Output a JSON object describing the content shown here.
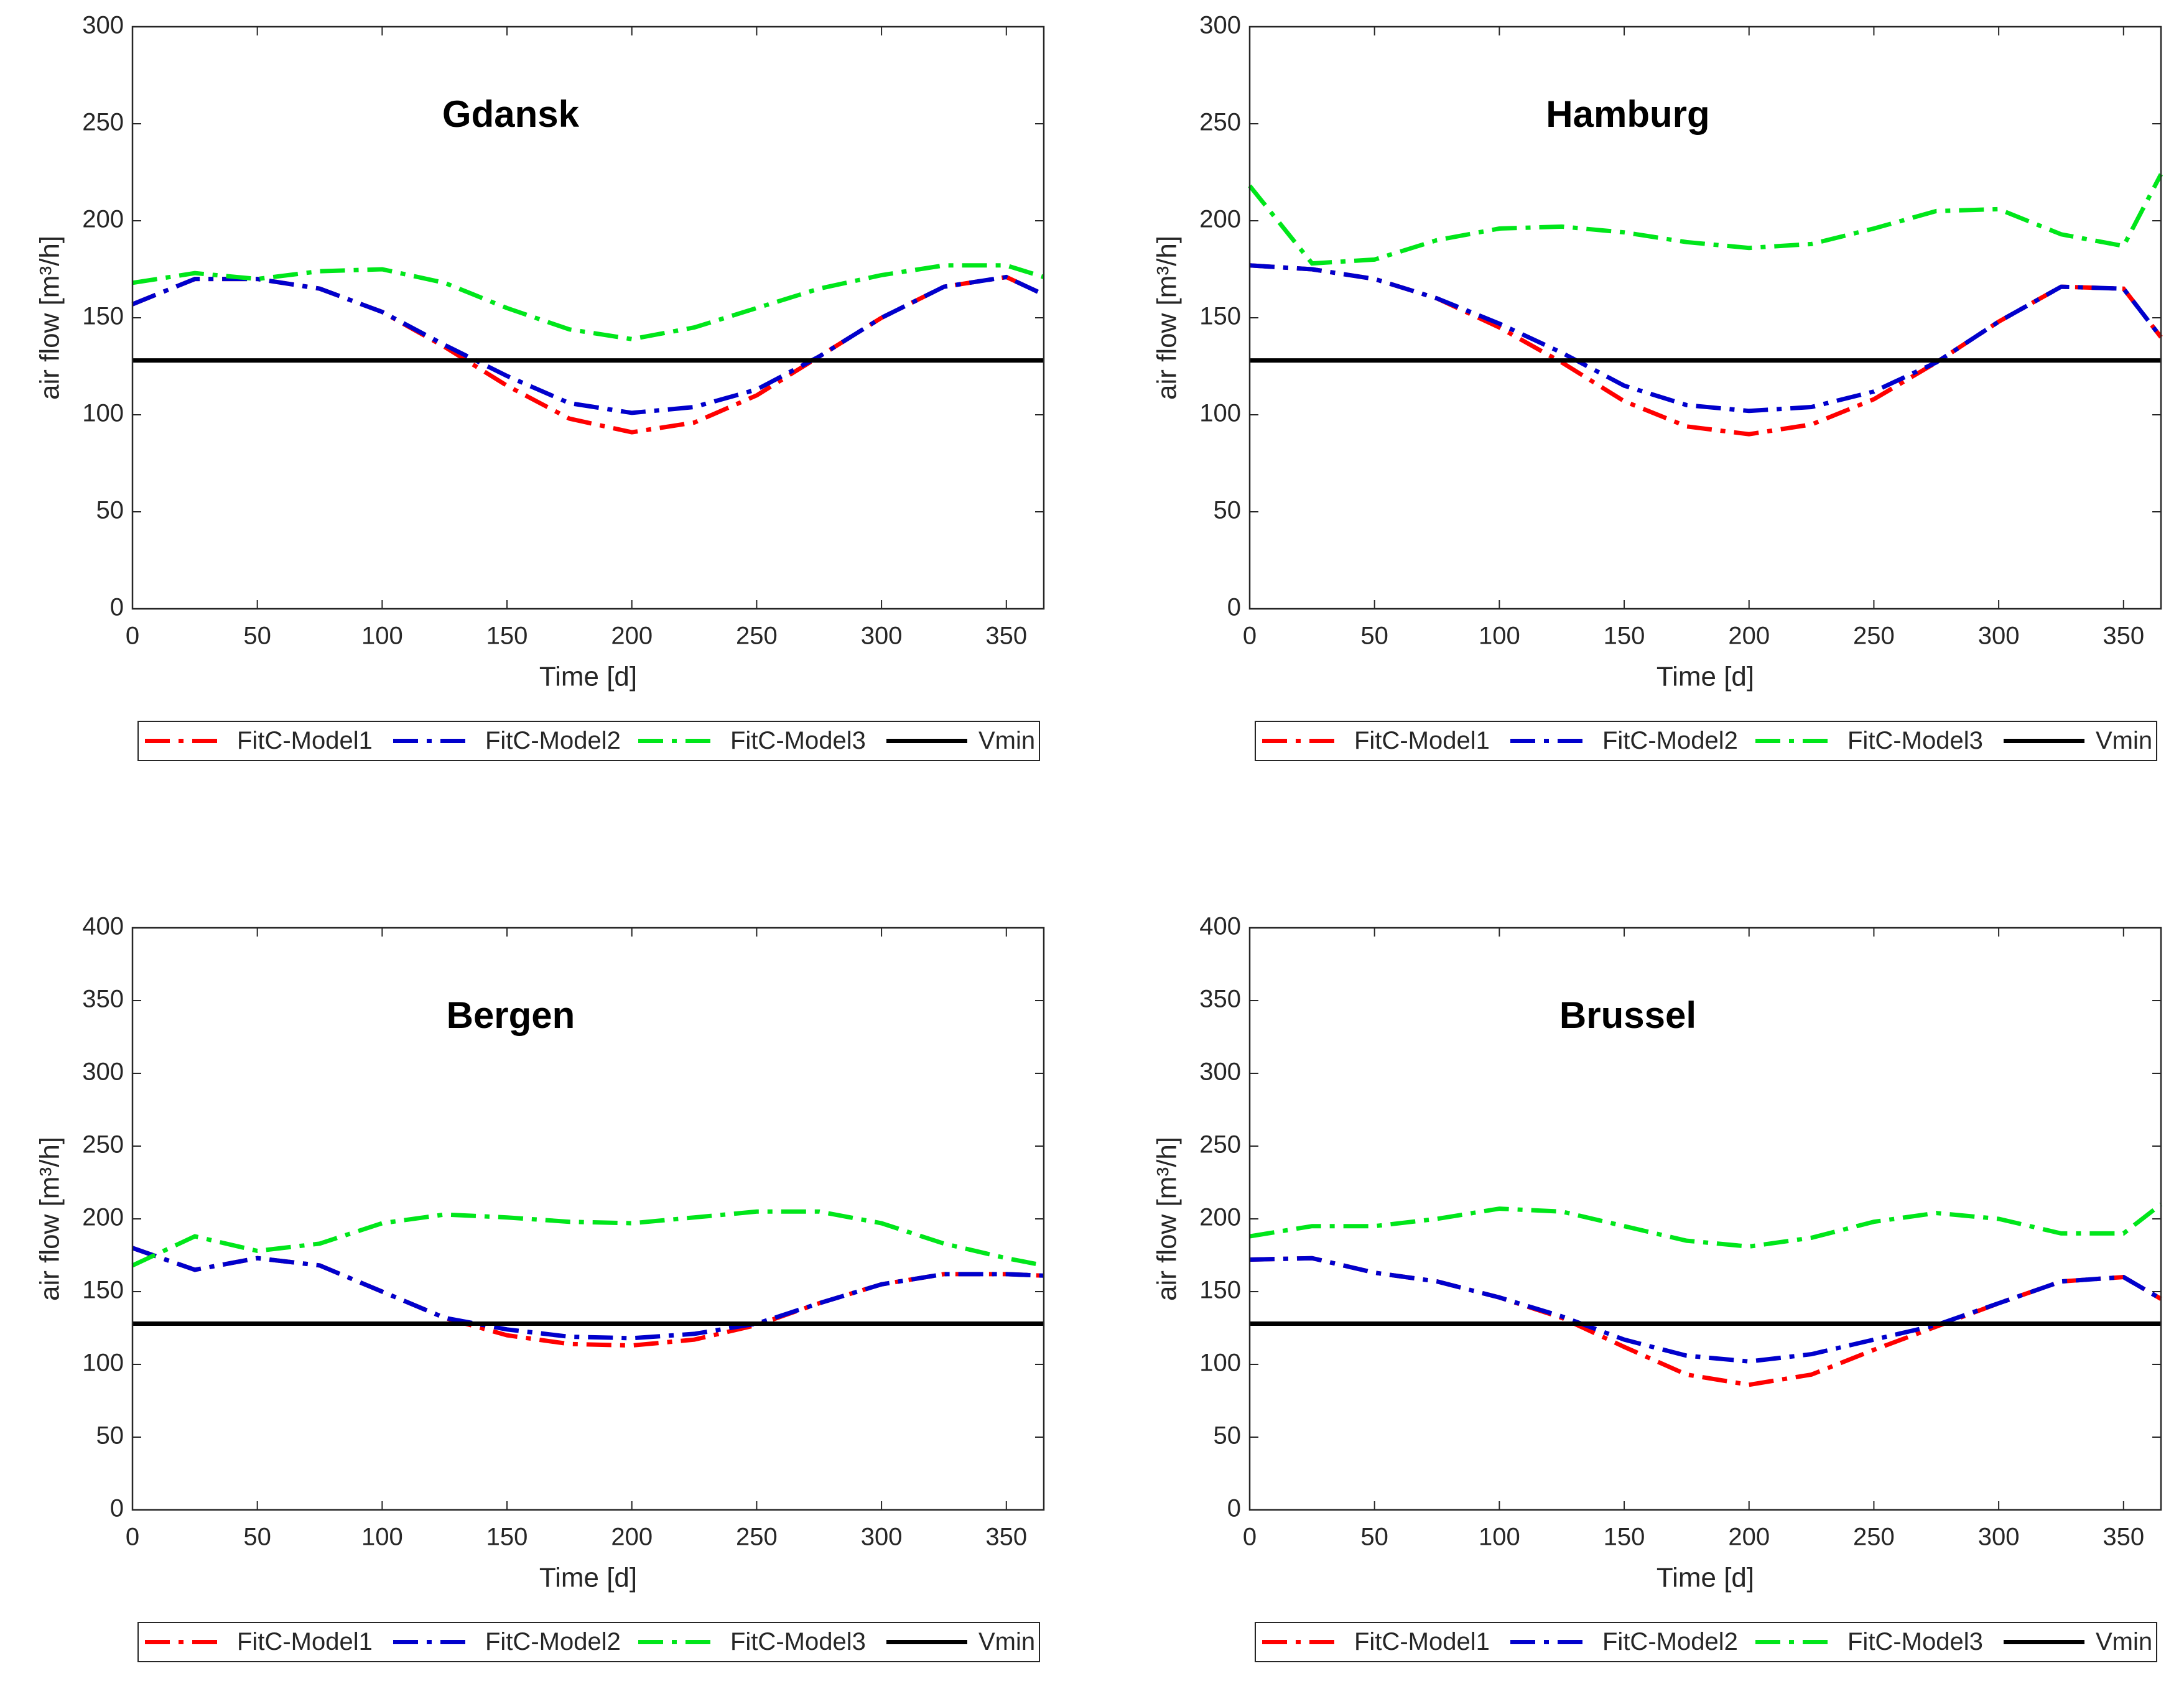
{
  "chart_data": [
    {
      "type": "line",
      "title": "Gdansk",
      "xlabel": "Time [d]",
      "ylabel": "air flow [m³/h]",
      "x": [
        0,
        25,
        50,
        75,
        100,
        125,
        150,
        175,
        200,
        225,
        250,
        275,
        300,
        325,
        350,
        365
      ],
      "xlim": [
        0,
        365
      ],
      "xticks": [
        0,
        50,
        100,
        150,
        200,
        250,
        300,
        350
      ],
      "ylim": [
        0,
        300
      ],
      "yticks": [
        0,
        50,
        100,
        150,
        200,
        250,
        300
      ],
      "series": [
        {
          "name": "FitC-Model1",
          "color": "#ff0000",
          "linestyle": "dashdot",
          "values": [
            157,
            170,
            170,
            165,
            153,
            135,
            115,
            98,
            91,
            96,
            110,
            130,
            150,
            166,
            171,
            162
          ]
        },
        {
          "name": "FitC-Model2",
          "color": "#0000cc",
          "linestyle": "dashdot",
          "values": [
            157,
            170,
            170,
            165,
            153,
            136,
            120,
            106,
            101,
            104,
            113,
            130,
            150,
            166,
            171,
            162
          ]
        },
        {
          "name": "FitC-Model3",
          "color": "#00e61a",
          "linestyle": "dashdot",
          "values": [
            168,
            173,
            170,
            174,
            175,
            168,
            155,
            144,
            139,
            145,
            155,
            165,
            172,
            177,
            177,
            171
          ]
        },
        {
          "name": "Vmin",
          "color": "#000000",
          "linestyle": "solid",
          "values": [
            128,
            128,
            128,
            128,
            128,
            128,
            128,
            128,
            128,
            128,
            128,
            128,
            128,
            128,
            128,
            128
          ]
        }
      ]
    },
    {
      "type": "line",
      "title": "Hamburg",
      "xlabel": "Time [d]",
      "ylabel": "air flow [m³/h]",
      "x": [
        0,
        25,
        50,
        75,
        100,
        125,
        150,
        175,
        200,
        225,
        250,
        275,
        300,
        325,
        350,
        365
      ],
      "xlim": [
        0,
        365
      ],
      "xticks": [
        0,
        50,
        100,
        150,
        200,
        250,
        300,
        350
      ],
      "ylim": [
        0,
        300
      ],
      "yticks": [
        0,
        50,
        100,
        150,
        200,
        250,
        300
      ],
      "series": [
        {
          "name": "FitC-Model1",
          "color": "#ff0000",
          "linestyle": "dashdot",
          "values": [
            177,
            175,
            170,
            160,
            145,
            127,
            107,
            94,
            90,
            95,
            108,
            127,
            148,
            166,
            165,
            140
          ]
        },
        {
          "name": "FitC-Model2",
          "color": "#0000cc",
          "linestyle": "dashdot",
          "values": [
            177,
            175,
            170,
            160,
            147,
            132,
            115,
            105,
            102,
            104,
            112,
            127,
            148,
            166,
            165,
            140
          ]
        },
        {
          "name": "FitC-Model3",
          "color": "#00e61a",
          "linestyle": "dashdot",
          "values": [
            218,
            178,
            180,
            190,
            196,
            197,
            194,
            189,
            186,
            188,
            196,
            205,
            206,
            193,
            187,
            224
          ]
        },
        {
          "name": "Vmin",
          "color": "#000000",
          "linestyle": "solid",
          "values": [
            128,
            128,
            128,
            128,
            128,
            128,
            128,
            128,
            128,
            128,
            128,
            128,
            128,
            128,
            128,
            128
          ]
        }
      ]
    },
    {
      "type": "line",
      "title": "Bergen",
      "xlabel": "Time [d]",
      "ylabel": "air flow [m³/h]",
      "x": [
        0,
        25,
        50,
        75,
        100,
        125,
        150,
        175,
        200,
        225,
        250,
        275,
        300,
        325,
        350,
        365
      ],
      "xlim": [
        0,
        365
      ],
      "xticks": [
        0,
        50,
        100,
        150,
        200,
        250,
        300,
        350
      ],
      "ylim": [
        0,
        400
      ],
      "yticks": [
        0,
        50,
        100,
        150,
        200,
        250,
        300,
        350,
        400
      ],
      "series": [
        {
          "name": "FitC-Model1",
          "color": "#ff0000",
          "linestyle": "dashdot",
          "values": [
            180,
            165,
            173,
            168,
            150,
            132,
            120,
            114,
            113,
            117,
            127,
            142,
            155,
            162,
            162,
            161
          ]
        },
        {
          "name": "FitC-Model2",
          "color": "#0000cc",
          "linestyle": "dashdot",
          "values": [
            180,
            165,
            173,
            168,
            150,
            132,
            124,
            119,
            118,
            121,
            128,
            142,
            155,
            162,
            162,
            161
          ]
        },
        {
          "name": "FitC-Model3",
          "color": "#00e61a",
          "linestyle": "dashdot",
          "values": [
            168,
            188,
            178,
            183,
            197,
            203,
            201,
            198,
            197,
            201,
            205,
            205,
            197,
            183,
            173,
            168
          ]
        },
        {
          "name": "Vmin",
          "color": "#000000",
          "linestyle": "solid",
          "values": [
            128,
            128,
            128,
            128,
            128,
            128,
            128,
            128,
            128,
            128,
            128,
            128,
            128,
            128,
            128,
            128
          ]
        }
      ]
    },
    {
      "type": "line",
      "title": "Brussel",
      "xlabel": "Time [d]",
      "ylabel": "air flow [m³/h]",
      "x": [
        0,
        25,
        50,
        75,
        100,
        125,
        150,
        175,
        200,
        225,
        250,
        275,
        300,
        325,
        350,
        365
      ],
      "xlim": [
        0,
        365
      ],
      "xticks": [
        0,
        50,
        100,
        150,
        200,
        250,
        300,
        350
      ],
      "ylim": [
        0,
        400
      ],
      "yticks": [
        0,
        50,
        100,
        150,
        200,
        250,
        300,
        350,
        400
      ],
      "series": [
        {
          "name": "FitC-Model1",
          "color": "#ff0000",
          "linestyle": "dashdot",
          "values": [
            172,
            173,
            163,
            157,
            146,
            132,
            112,
            93,
            86,
            93,
            110,
            126,
            142,
            157,
            160,
            145
          ]
        },
        {
          "name": "FitC-Model2",
          "color": "#0000cc",
          "linestyle": "dashdot",
          "values": [
            172,
            173,
            163,
            157,
            146,
            133,
            117,
            106,
            102,
            107,
            117,
            127,
            142,
            157,
            160,
            145
          ]
        },
        {
          "name": "FitC-Model3",
          "color": "#00e61a",
          "linestyle": "dashdot",
          "values": [
            188,
            195,
            195,
            200,
            207,
            205,
            195,
            185,
            181,
            187,
            198,
            204,
            200,
            190,
            190,
            210
          ]
        },
        {
          "name": "Vmin",
          "color": "#000000",
          "linestyle": "solid",
          "values": [
            128,
            128,
            128,
            128,
            128,
            128,
            128,
            128,
            128,
            128,
            128,
            128,
            128,
            128,
            128,
            128
          ]
        }
      ]
    }
  ]
}
